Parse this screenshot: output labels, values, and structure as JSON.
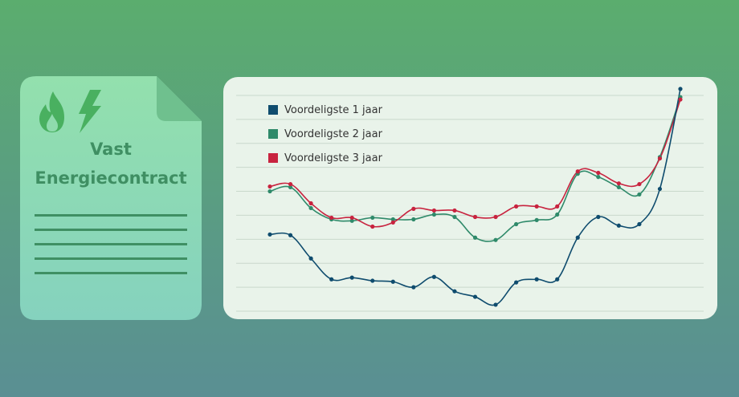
{
  "document": {
    "title_line1": "Vast",
    "title_line2": "Energiecontract",
    "icons": [
      "flame-icon",
      "lightning-bolt-icon"
    ],
    "colors": {
      "fill": "#8fdbad",
      "fold": "#6fc08e",
      "text": "#3f8f63"
    }
  },
  "chart_data": {
    "type": "line",
    "x": [
      0,
      1,
      2,
      3,
      4,
      5,
      6,
      7,
      8,
      9,
      10,
      11,
      12,
      13,
      14,
      15,
      16,
      17,
      18,
      19,
      20
    ],
    "ylim": [
      0,
      9.3
    ],
    "grid": true,
    "legend_position": "top-left",
    "series": [
      {
        "name": "Voordeligste 1 jaar",
        "color": "#0f4c6e",
        "values": [
          3.2,
          3.17,
          2.2,
          1.33,
          1.4,
          1.27,
          1.23,
          1.0,
          1.43,
          0.83,
          0.6,
          0.27,
          1.2,
          1.33,
          1.33,
          3.07,
          3.93,
          3.57,
          3.63,
          5.1,
          9.27
        ]
      },
      {
        "name": "Voordeligste 2 jaar",
        "color": "#2f8a6a",
        "values": [
          5.0,
          5.17,
          4.3,
          3.83,
          3.77,
          3.9,
          3.83,
          3.83,
          4.03,
          3.93,
          3.07,
          2.97,
          3.63,
          3.8,
          4.03,
          5.73,
          5.6,
          5.17,
          4.87,
          6.43,
          8.93
        ]
      },
      {
        "name": "Voordeligste 3 jaar",
        "color": "#c8233f",
        "values": [
          5.2,
          5.3,
          4.5,
          3.9,
          3.9,
          3.53,
          3.7,
          4.27,
          4.2,
          4.2,
          3.93,
          3.93,
          4.37,
          4.37,
          4.37,
          5.83,
          5.77,
          5.33,
          5.3,
          6.37,
          8.83
        ]
      }
    ]
  }
}
